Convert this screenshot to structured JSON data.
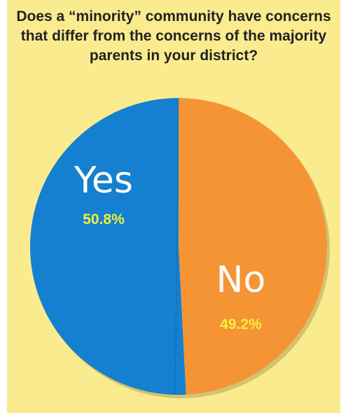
{
  "colors": {
    "background": "#fbeb8f",
    "yes_slice": "#1480cf",
    "no_slice": "#f59435",
    "category_label": "#ffffff",
    "percent_label": "#f5ef3c",
    "title": "#222222"
  },
  "chart_data": {
    "type": "pie",
    "title": "Does a “minority” community have concerns that differ from the concerns of the majority parents in your district?",
    "slices": [
      {
        "label": "Yes",
        "value": 50.8,
        "display": "50.8%",
        "color": "#1480cf"
      },
      {
        "label": "No",
        "value": 49.2,
        "display": "49.2%",
        "color": "#f59435"
      }
    ]
  }
}
